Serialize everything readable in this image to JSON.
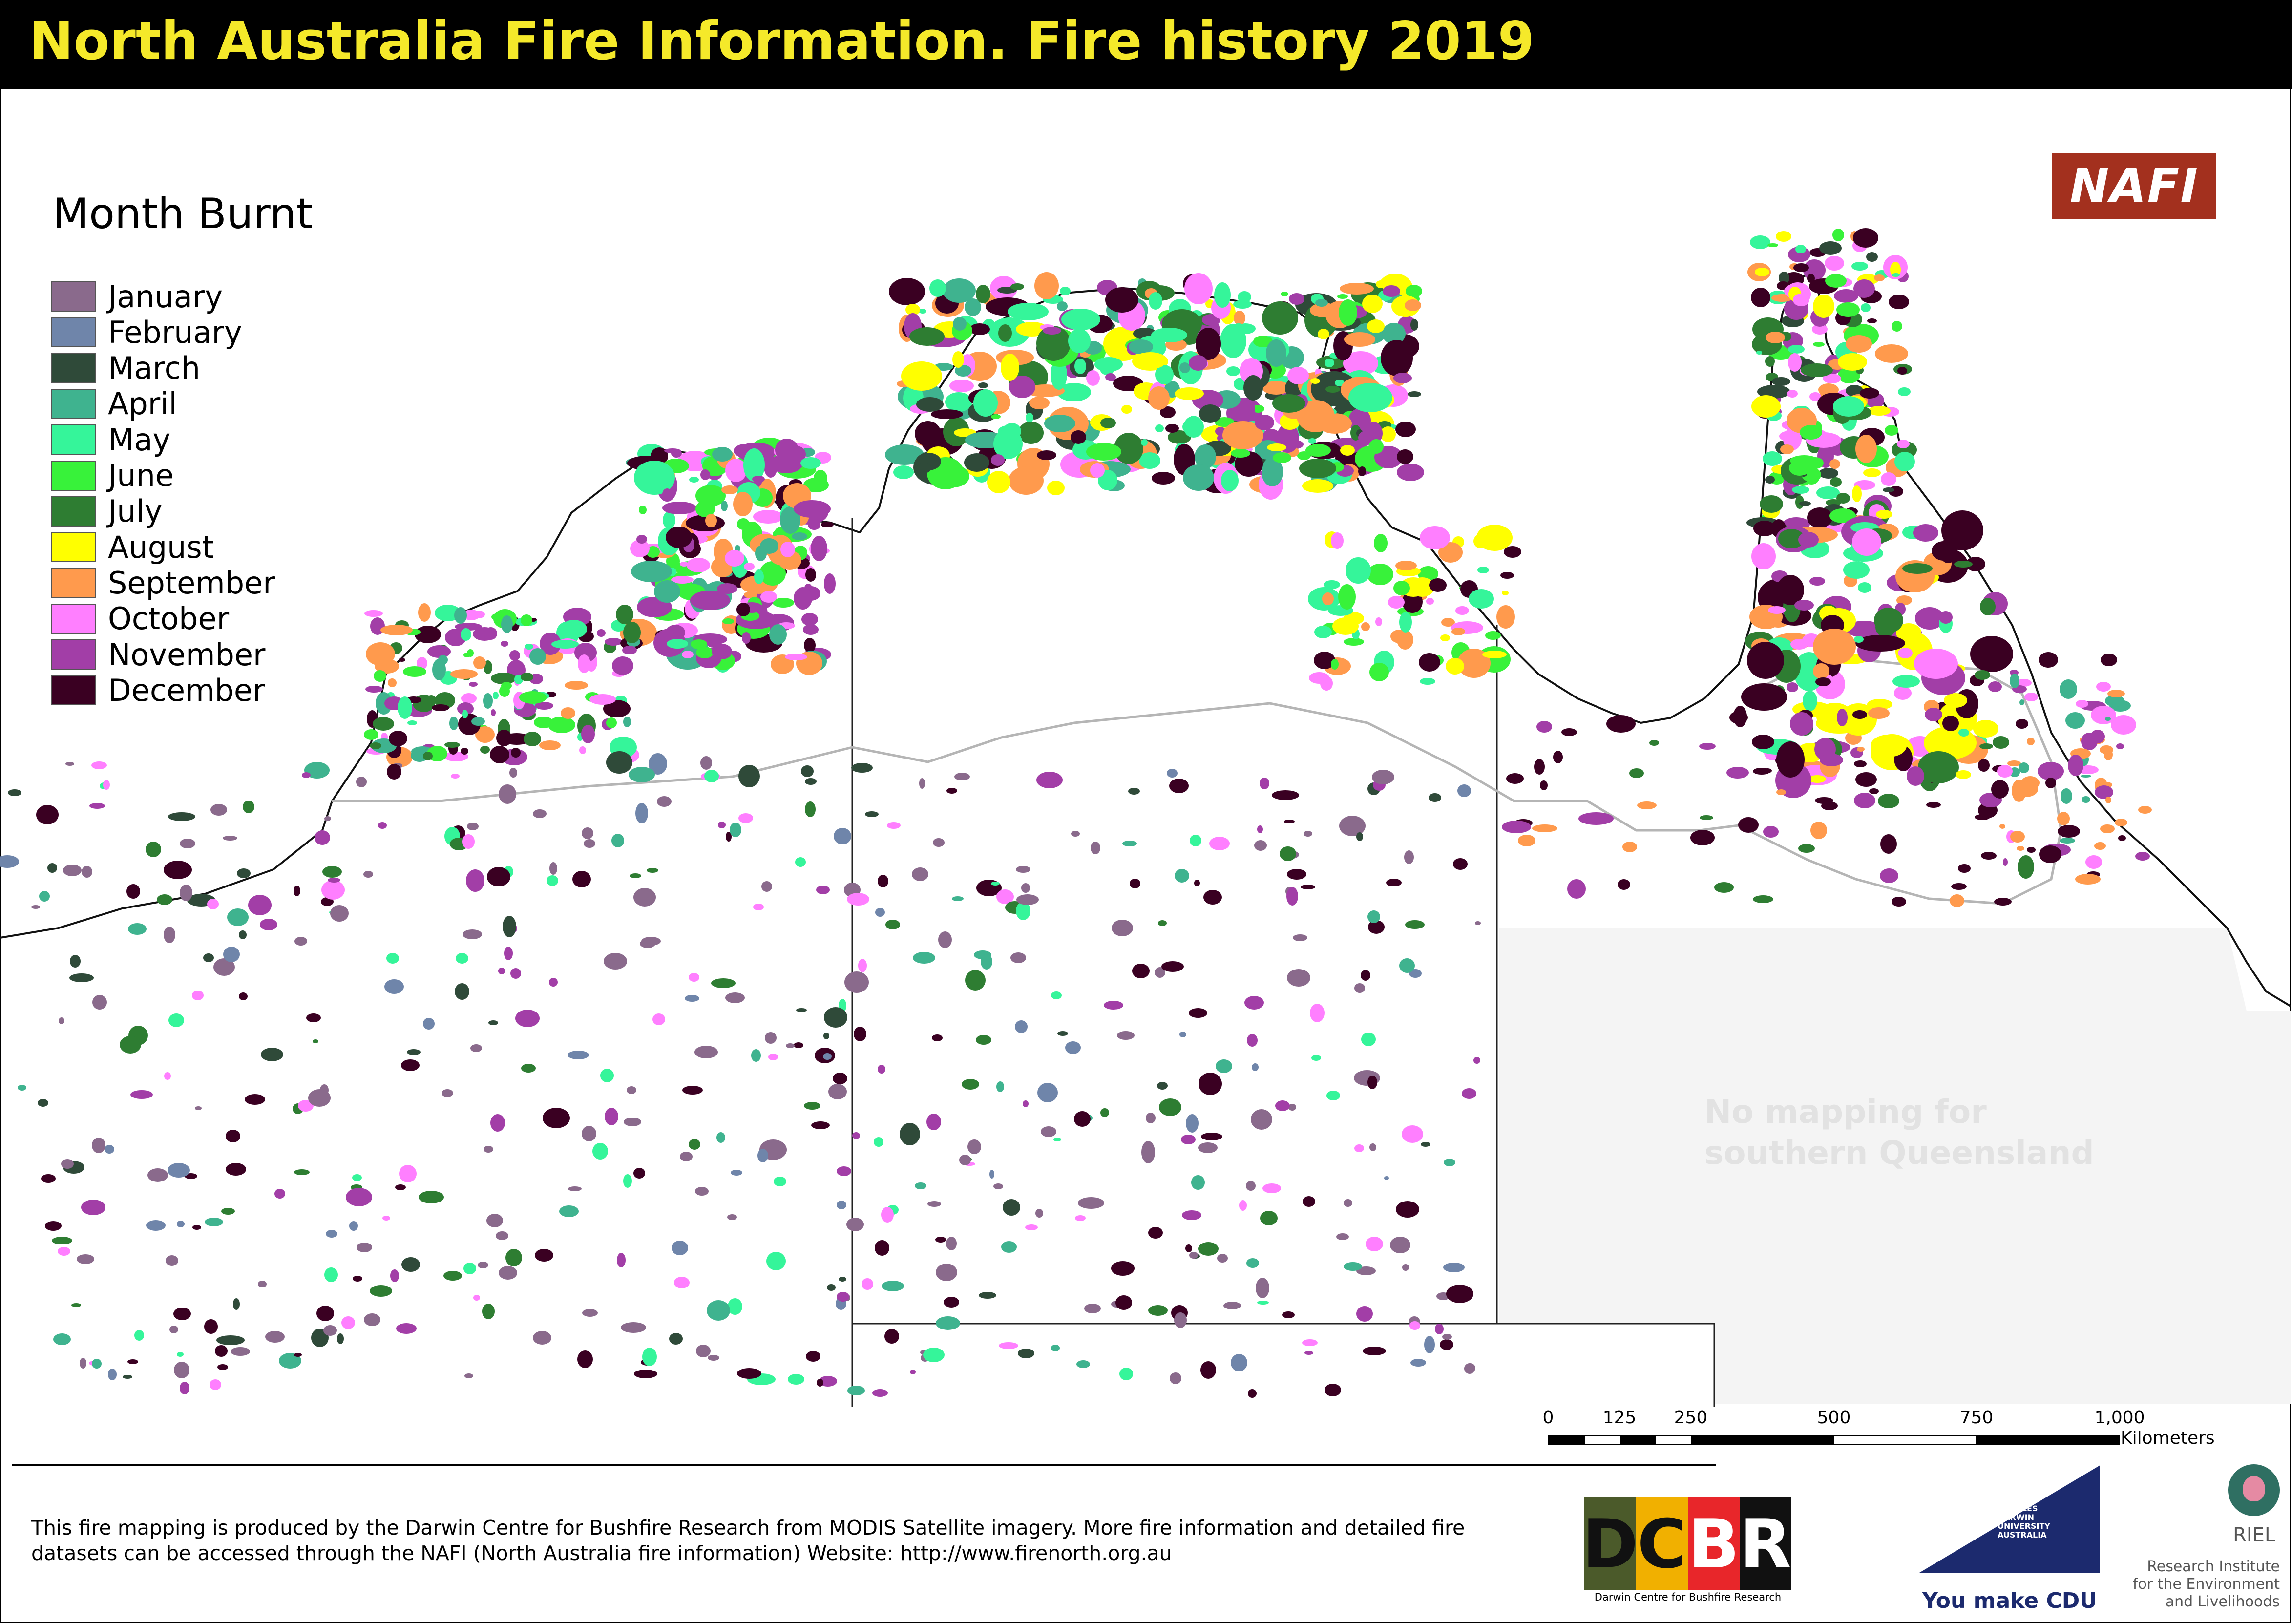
{
  "title": "North Australia Fire Information.  Fire history 2019",
  "legend": {
    "title": "Month Burnt",
    "items": [
      {
        "label": "January",
        "color": "#8a6a8c"
      },
      {
        "label": "February",
        "color": "#6f85aa"
      },
      {
        "label": "March",
        "color": "#2f4a39"
      },
      {
        "label": "April",
        "color": "#3fb38f"
      },
      {
        "label": "May",
        "color": "#35f59a"
      },
      {
        "label": "June",
        "color": "#38f23a"
      },
      {
        "label": "July",
        "color": "#2e7d32"
      },
      {
        "label": "August",
        "color": "#ffff00"
      },
      {
        "label": "September",
        "color": "#ff9a4d"
      },
      {
        "label": "October",
        "color": "#ff7fff"
      },
      {
        "label": "November",
        "color": "#a23ea7"
      },
      {
        "label": "December",
        "color": "#3a0022"
      }
    ]
  },
  "logo_nafi": "NAFI",
  "no_mapping_note": "No mapping for southern Queensland",
  "scale": {
    "labels": [
      "0",
      "125",
      "250",
      "500",
      "750",
      "1,000"
    ],
    "unit": "Kilometers"
  },
  "footer_text": "This fire mapping is produced by the Darwin Centre for Bushfire Research from MODIS Satellite imagery. More fire information and detailed fire datasets can be accessed through the NAFI (North Australia fire information) Website: http://www.firenorth.org.au",
  "dcbr": {
    "letters": [
      "D",
      "C",
      "B",
      "R"
    ],
    "caption": "Darwin Centre for Bushfire Research"
  },
  "cdu": {
    "name": "CHARLES DARWIN UNIVERSITY AUSTRALIA",
    "tagline": "You make CDU"
  },
  "riel": {
    "short": "RIEL",
    "full": "Research Institute for the Environment and Livelihoods"
  }
}
